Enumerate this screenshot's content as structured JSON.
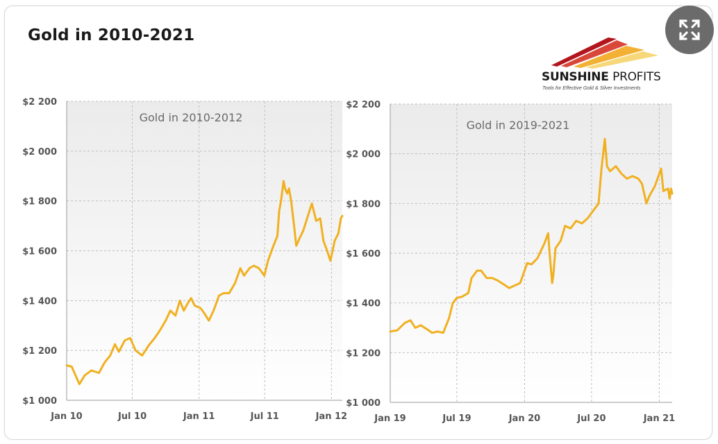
{
  "page": {
    "title": "Gold in 2010-2021"
  },
  "logo": {
    "name_bold": "SUNSHINE",
    "name_light": "PROFITS",
    "tagline": "Tools for Effective Gold & Silver Investments"
  },
  "colors": {
    "line": "#f0b020",
    "grid": "#bdbdbd",
    "panel_bg_top": "#ebebeb",
    "panel_bg_bottom": "#ffffff"
  },
  "icons": {
    "expand": "expand-arrows-icon"
  },
  "chart_data": [
    {
      "type": "line",
      "title": "Gold in 2010-2012",
      "xlabel": "",
      "ylabel": "",
      "x_start": "2010-01-01",
      "x_end": "2012-01-31",
      "x_ticks": [
        {
          "date": "2010-01-01",
          "label": "Jan 10"
        },
        {
          "date": "2010-07-01",
          "label": "Jul 10"
        },
        {
          "date": "2011-01-01",
          "label": "Jan 11"
        },
        {
          "date": "2011-07-01",
          "label": "Jul 11"
        },
        {
          "date": "2012-01-01",
          "label": "Jan 12"
        }
      ],
      "ylim": [
        1000,
        2200
      ],
      "y_ticks": [
        {
          "value": 1000,
          "label": "$1 000"
        },
        {
          "value": 1200,
          "label": "$1 200"
        },
        {
          "value": 1400,
          "label": "$1 400"
        },
        {
          "value": 1600,
          "label": "$1 600"
        },
        {
          "value": 1800,
          "label": "$1 800"
        },
        {
          "value": 2000,
          "label": "$2 000"
        },
        {
          "value": 2200,
          "label": "$2 200"
        }
      ],
      "grid": true,
      "series": [
        {
          "x": [
            "2010-01-01",
            "2010-01-15",
            "2010-02-05",
            "2010-02-20",
            "2010-03-10",
            "2010-03-31",
            "2010-04-15",
            "2010-05-01",
            "2010-05-14",
            "2010-05-25",
            "2010-06-10",
            "2010-06-25",
            "2010-07-10",
            "2010-07-28",
            "2010-08-15",
            "2010-09-01",
            "2010-09-15",
            "2010-10-01",
            "2010-10-14",
            "2010-10-28",
            "2010-11-09",
            "2010-11-20",
            "2010-12-01",
            "2010-12-10",
            "2010-12-20",
            "2011-01-05",
            "2011-01-15",
            "2011-01-28",
            "2011-02-10",
            "2011-02-25",
            "2011-03-10",
            "2011-03-25",
            "2011-04-10",
            "2011-04-25",
            "2011-05-05",
            "2011-05-20",
            "2011-06-01",
            "2011-06-15",
            "2011-06-30",
            "2011-07-10",
            "2011-07-25",
            "2011-08-05",
            "2011-08-10",
            "2011-08-15",
            "2011-08-22",
            "2011-08-26",
            "2011-09-01",
            "2011-09-06",
            "2011-09-12",
            "2011-09-20",
            "2011-09-26",
            "2011-10-05",
            "2011-10-15",
            "2011-10-28",
            "2011-11-08",
            "2011-11-20",
            "2011-12-01",
            "2011-12-10",
            "2011-12-20",
            "2011-12-29",
            "2012-01-10",
            "2012-01-20",
            "2012-01-27",
            "2012-01-31"
          ],
          "values": [
            1140,
            1135,
            1065,
            1100,
            1120,
            1110,
            1150,
            1180,
            1225,
            1195,
            1240,
            1250,
            1200,
            1180,
            1220,
            1250,
            1280,
            1320,
            1360,
            1340,
            1400,
            1360,
            1390,
            1410,
            1380,
            1370,
            1350,
            1320,
            1360,
            1420,
            1430,
            1430,
            1470,
            1530,
            1500,
            1530,
            1540,
            1530,
            1500,
            1560,
            1620,
            1660,
            1760,
            1800,
            1880,
            1850,
            1830,
            1850,
            1800,
            1700,
            1620,
            1650,
            1680,
            1740,
            1790,
            1720,
            1730,
            1640,
            1600,
            1560,
            1640,
            1670,
            1730,
            1740
          ]
        }
      ]
    },
    {
      "type": "line",
      "title": "Gold in 2019-2021",
      "xlabel": "",
      "ylabel": "",
      "x_start": "2019-01-01",
      "x_end": "2021-02-05",
      "x_ticks": [
        {
          "date": "2019-01-01",
          "label": "Jan 19"
        },
        {
          "date": "2019-07-01",
          "label": "Jul 19"
        },
        {
          "date": "2020-01-01",
          "label": "Jan 20"
        },
        {
          "date": "2020-07-01",
          "label": "Jul 20"
        },
        {
          "date": "2021-01-01",
          "label": "Jan 21"
        }
      ],
      "ylim": [
        1000,
        2200
      ],
      "y_ticks": [
        {
          "value": 1000,
          "label": "$1 000"
        },
        {
          "value": 1200,
          "label": "$1 200"
        },
        {
          "value": 1400,
          "label": "$1 400"
        },
        {
          "value": 1600,
          "label": "$1 600"
        },
        {
          "value": 1800,
          "label": "$1 800"
        },
        {
          "value": 2000,
          "label": "$2 000"
        },
        {
          "value": 2200,
          "label": "$2 200"
        }
      ],
      "grid": true,
      "series": [
        {
          "x": [
            "2019-01-01",
            "2019-01-20",
            "2019-02-10",
            "2019-02-25",
            "2019-03-10",
            "2019-03-25",
            "2019-04-10",
            "2019-04-25",
            "2019-05-10",
            "2019-05-25",
            "2019-06-10",
            "2019-06-20",
            "2019-07-01",
            "2019-07-15",
            "2019-08-01",
            "2019-08-10",
            "2019-08-25",
            "2019-09-05",
            "2019-09-20",
            "2019-10-05",
            "2019-10-20",
            "2019-11-05",
            "2019-11-20",
            "2019-12-05",
            "2019-12-20",
            "2020-01-08",
            "2020-01-20",
            "2020-02-05",
            "2020-02-24",
            "2020-03-05",
            "2020-03-09",
            "2020-03-16",
            "2020-03-19",
            "2020-03-25",
            "2020-04-08",
            "2020-04-20",
            "2020-05-05",
            "2020-05-20",
            "2020-06-05",
            "2020-06-20",
            "2020-07-05",
            "2020-07-20",
            "2020-07-28",
            "2020-08-06",
            "2020-08-12",
            "2020-08-20",
            "2020-09-05",
            "2020-09-20",
            "2020-10-05",
            "2020-10-20",
            "2020-11-05",
            "2020-11-15",
            "2020-11-27",
            "2020-12-05",
            "2020-12-20",
            "2021-01-06",
            "2021-01-12",
            "2021-01-25",
            "2021-01-29",
            "2021-02-02",
            "2021-02-05"
          ],
          "values": [
            1285,
            1290,
            1320,
            1330,
            1300,
            1310,
            1295,
            1280,
            1285,
            1280,
            1340,
            1400,
            1420,
            1425,
            1440,
            1500,
            1530,
            1530,
            1500,
            1500,
            1490,
            1475,
            1460,
            1470,
            1480,
            1560,
            1555,
            1580,
            1640,
            1680,
            1600,
            1480,
            1510,
            1620,
            1650,
            1710,
            1700,
            1730,
            1720,
            1740,
            1770,
            1800,
            1940,
            2060,
            1950,
            1930,
            1950,
            1920,
            1900,
            1910,
            1900,
            1880,
            1800,
            1830,
            1870,
            1940,
            1850,
            1860,
            1820,
            1860,
            1840
          ]
        }
      ]
    }
  ]
}
